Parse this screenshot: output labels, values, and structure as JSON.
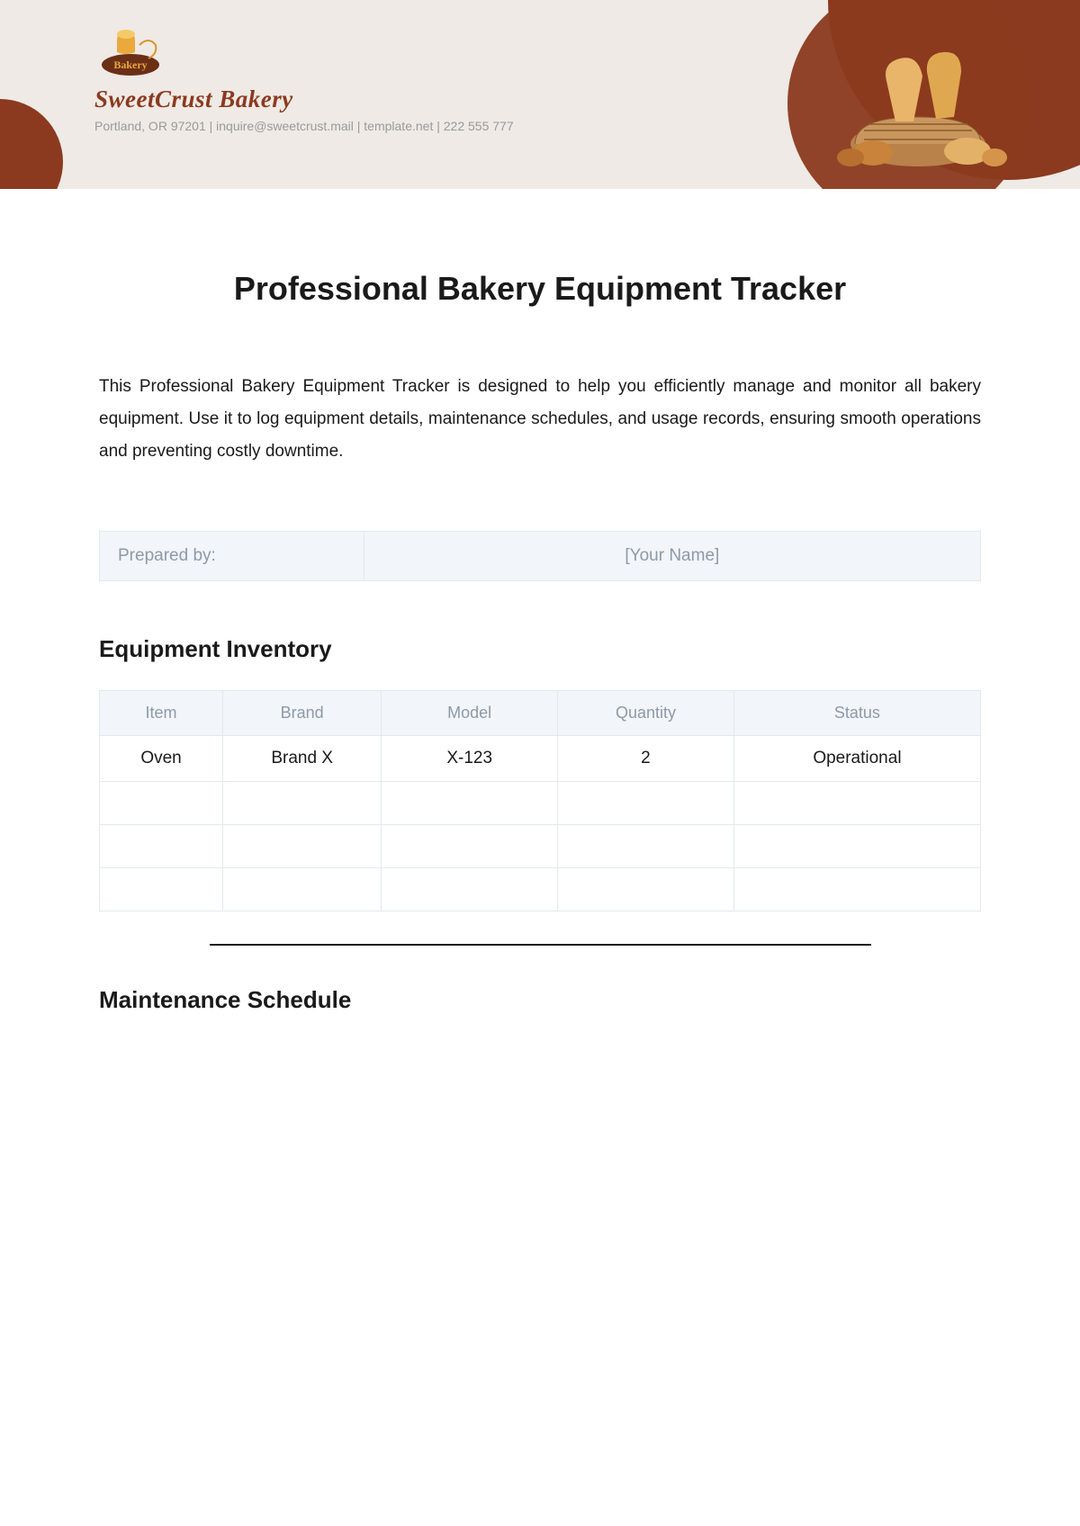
{
  "theme": {
    "header_bg": "#efeae5",
    "brand_primary": "#8b3a1f",
    "brand_accent": "#e9a93c",
    "muted_text": "#9a9a9a",
    "table_header_bg": "#f2f5f9",
    "table_border": "#e4e9ef",
    "table_header_text": "#8e99a8",
    "body_text": "#1a1a1a"
  },
  "company": {
    "logo_label": "Bakery",
    "name": "SweetCrust Bakery",
    "meta": "Portland, OR 97201 | inquire@sweetcrust.mail | template.net | 222 555 777"
  },
  "document": {
    "title": "Professional Bakery Equipment Tracker",
    "description": "This Professional Bakery Equipment Tracker is designed to help you efficiently manage and monitor all bakery equipment. Use it to log equipment details, maintenance schedules, and usage records, ensuring smooth operations and preventing costly downtime."
  },
  "prepared": {
    "label": "Prepared by:",
    "value": "[Your Name]"
  },
  "inventory": {
    "heading": "Equipment Inventory",
    "columns": [
      "Item",
      "Brand",
      "Model",
      "Quantity",
      "Status"
    ],
    "column_widths": [
      "14%",
      "18%",
      "20%",
      "20%",
      "28%"
    ],
    "rows": [
      [
        "Oven",
        "Brand X",
        "X-123",
        "2",
        "Operational"
      ],
      [
        "",
        "",
        "",
        "",
        ""
      ],
      [
        "",
        "",
        "",
        "",
        ""
      ],
      [
        "",
        "",
        "",
        "",
        ""
      ]
    ]
  },
  "maintenance": {
    "heading": "Maintenance Schedule"
  }
}
